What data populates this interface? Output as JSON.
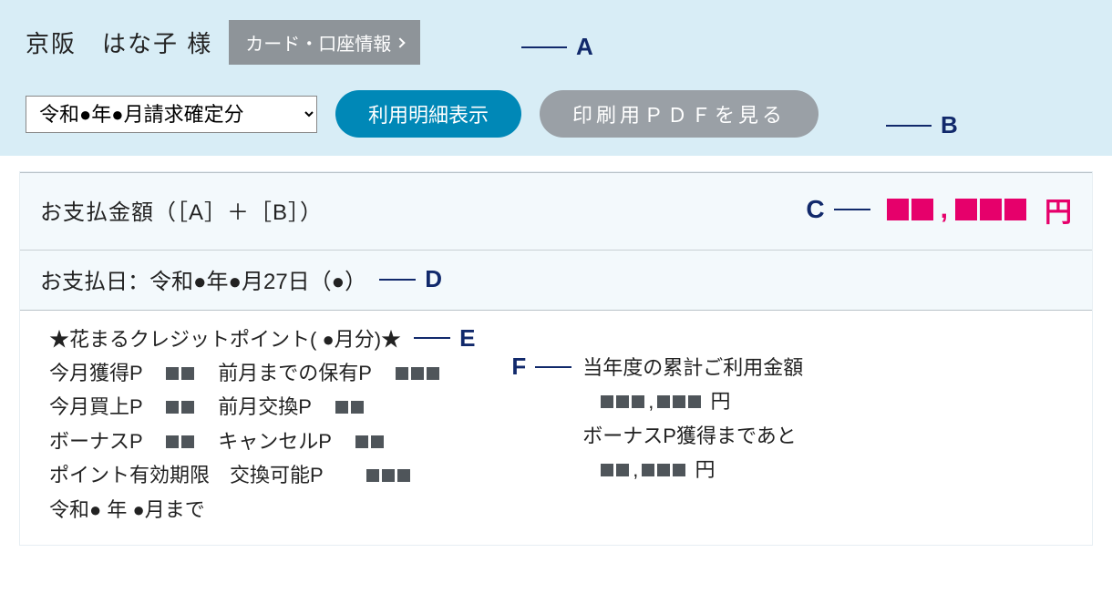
{
  "colors": {
    "header_bg": "#d8edf6",
    "btn_gray": "#8e9499",
    "btn_primary": "#0088b7",
    "btn_secondary": "#9aa0a6",
    "annot": "#11296b",
    "amount": "#e6006b",
    "mask_dark": "#4f555a",
    "text": "#222222",
    "pale_row": "#f3f9fc",
    "rule": "#b9c2c8"
  },
  "header": {
    "user_name": "京阪　はな子 様",
    "card_info_btn": "カード・口座情報",
    "period_select_value": "令和●年●月請求確定分",
    "show_details_btn": "利用明細表示",
    "pdf_btn": "印刷用ＰＤＦを見る"
  },
  "annotations": {
    "A": "A",
    "B": "B",
    "C": "C",
    "D": "D",
    "E": "E",
    "F": "F"
  },
  "payment": {
    "label": "お支払金額（［A］＋［B］）",
    "currency": "円",
    "mask_groups": [
      2,
      3
    ],
    "date_line": "お支払日：令和●年●月27日（●）"
  },
  "points": {
    "title": "★花まるクレジットポイント( ●月分)★",
    "lines_left": [
      {
        "type": "pair",
        "a_label": "今月獲得P",
        "a_mask": 2,
        "b_label": "前月までの保有P",
        "b_mask": 3
      },
      {
        "type": "pair",
        "a_label": "今月買上P",
        "a_mask": 2,
        "b_label": "前月交換P",
        "b_mask": 2
      },
      {
        "type": "pair",
        "a_label": "ボーナスP",
        "a_mask": 2,
        "b_label": "キャンセルP",
        "b_mask": 2
      },
      {
        "type": "pair_wide",
        "a_label": "ポイント有効期限",
        "b_label": "交換可能P",
        "b_mask": 3
      },
      {
        "type": "text",
        "text": "令和● 年  ●月まで"
      }
    ],
    "right": {
      "line1": "当年度の累計ご利用金額",
      "line2_mask": [
        3,
        3
      ],
      "line2_suffix": "円",
      "line3": "ボーナスP獲得まであと",
      "line4_mask": [
        2,
        3
      ],
      "line4_suffix": "円"
    }
  }
}
